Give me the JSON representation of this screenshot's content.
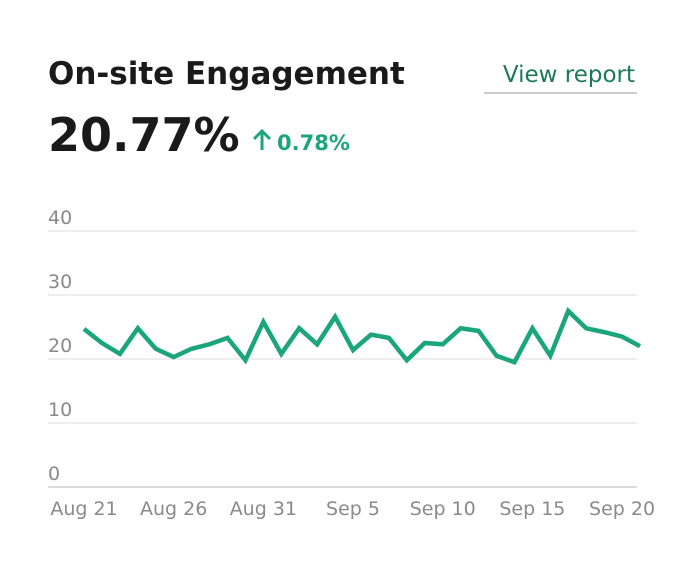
{
  "header": {
    "title": "On-site Engagement",
    "value": "20.77%",
    "change": "0.78%",
    "link": "View report"
  },
  "chart_data": {
    "type": "line",
    "categories": [
      "Aug 21",
      null,
      null,
      null,
      null,
      "Aug 26",
      null,
      null,
      null,
      null,
      "Aug 31",
      null,
      null,
      null,
      null,
      "Sep 5",
      null,
      null,
      null,
      null,
      "Sep 10",
      null,
      null,
      null,
      null,
      "Sep 15",
      null,
      null,
      null,
      null,
      "Sep 20",
      null
    ],
    "values": [
      24.7,
      22.5,
      20.8,
      24.8,
      21.6,
      20.3,
      21.6,
      22.3,
      23.3,
      19.8,
      25.8,
      20.8,
      24.8,
      22.3,
      26.6,
      21.4,
      23.8,
      23.3,
      19.8,
      22.5,
      22.3,
      24.8,
      24.4,
      20.5,
      19.5,
      24.8,
      20.5,
      27.5,
      24.8,
      24.2,
      23.5,
      22.0
    ],
    "color": "#1aa57a",
    "ylim": [
      0,
      40
    ],
    "yticks": [
      0,
      10,
      20,
      30,
      40
    ],
    "grid": true
  }
}
